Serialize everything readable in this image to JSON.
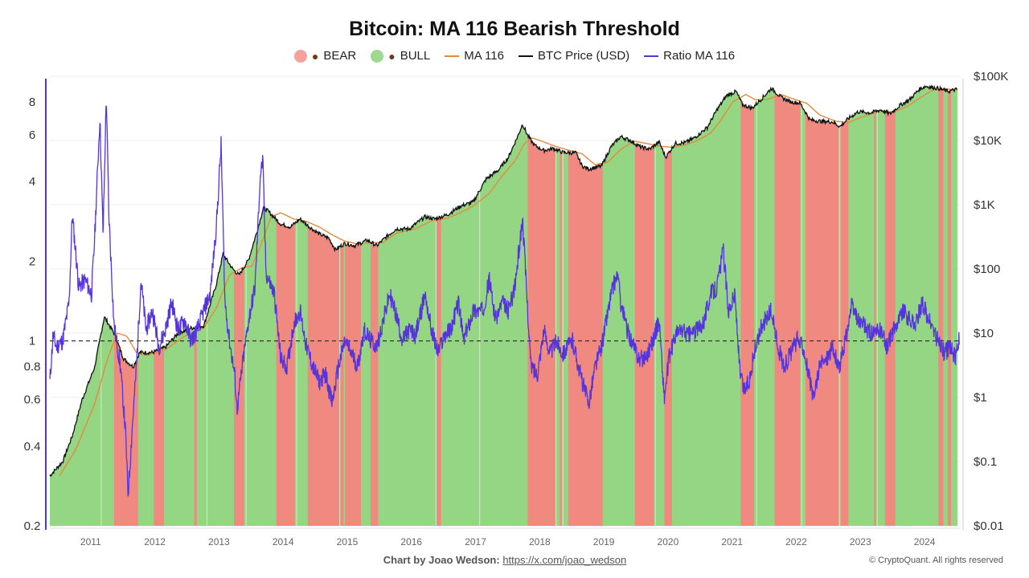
{
  "chart_data": {
    "type": "line",
    "title": "Bitcoin: MA 116 Bearish Threshold",
    "legend": [
      {
        "label": "BEAR",
        "kind": "dot",
        "color": "#f08a80",
        "icon": "bear-icon"
      },
      {
        "label": "BULL",
        "kind": "dot",
        "color": "#8fd47e",
        "icon": "bull-icon"
      },
      {
        "label": "MA 116",
        "kind": "line",
        "color": "#e58a3c"
      },
      {
        "label": "BTC Price (USD)",
        "kind": "line",
        "color": "#111111"
      },
      {
        "label": "Ratio MA 116",
        "kind": "line",
        "color": "#5533dd"
      }
    ],
    "legend_position": "top-center",
    "x_range": [
      2010.6,
      2024.8
    ],
    "x_ticks": [
      "2011",
      "2012",
      "2013",
      "2014",
      "2015",
      "2016",
      "2017",
      "2018",
      "2019",
      "2020",
      "2021",
      "2022",
      "2023",
      "2024"
    ],
    "left_axis": {
      "scale": "log",
      "range": [
        0.2,
        10
      ],
      "ticks": [
        {
          "value": 8,
          "label": "8"
        },
        {
          "value": 6,
          "label": "6"
        },
        {
          "value": 4,
          "label": "4"
        },
        {
          "value": 2,
          "label": "2"
        },
        {
          "value": 1,
          "label": "1"
        },
        {
          "value": 0.8,
          "label": "0.8"
        },
        {
          "value": 0.6,
          "label": "0.6"
        },
        {
          "value": 0.4,
          "label": "0.4"
        },
        {
          "value": 0.2,
          "label": "0.2"
        }
      ]
    },
    "right_axis": {
      "scale": "log",
      "range": [
        0.01,
        100000
      ],
      "ticks": [
        {
          "value": 100000,
          "label": "$100K"
        },
        {
          "value": 10000,
          "label": "$10K"
        },
        {
          "value": 1000,
          "label": "$1K"
        },
        {
          "value": 100,
          "label": "$100"
        },
        {
          "value": 10,
          "label": "$10"
        },
        {
          "value": 1,
          "label": "$1"
        },
        {
          "value": 0.1,
          "label": "$0.1"
        },
        {
          "value": 0.01,
          "label": "$0.01"
        }
      ]
    },
    "threshold": 1,
    "bear_periods": [
      [
        2011.6,
        2011.98
      ],
      [
        2012.22,
        2012.38
      ],
      [
        2012.85,
        2012.89
      ],
      [
        2013.47,
        2013.63
      ],
      [
        2014.13,
        2014.42
      ],
      [
        2014.62,
        2015.18
      ],
      [
        2015.2,
        2015.45
      ],
      [
        2015.6,
        2015.72
      ],
      [
        2016.63,
        2016.7
      ],
      [
        2018.05,
        2018.48
      ],
      [
        2018.55,
        2018.58
      ],
      [
        2018.68,
        2019.22
      ],
      [
        2019.72,
        2020.02
      ],
      [
        2020.18,
        2020.3
      ],
      [
        2021.37,
        2021.58
      ],
      [
        2021.9,
        2022.3
      ],
      [
        2022.38,
        2022.9
      ],
      [
        2022.93,
        2023.05
      ],
      [
        2023.45,
        2023.48
      ],
      [
        2023.62,
        2023.78
      ],
      [
        2024.45,
        2024.53
      ],
      [
        2024.6,
        2024.65
      ]
    ],
    "btc_price": [
      [
        2010.6,
        0.06
      ],
      [
        2010.8,
        0.1
      ],
      [
        2010.95,
        0.25
      ],
      [
        2011.1,
        0.9
      ],
      [
        2011.3,
        3
      ],
      [
        2011.45,
        18
      ],
      [
        2011.6,
        10
      ],
      [
        2011.75,
        4
      ],
      [
        2011.9,
        3
      ],
      [
        2012.0,
        5
      ],
      [
        2012.2,
        5
      ],
      [
        2012.4,
        6
      ],
      [
        2012.6,
        10
      ],
      [
        2012.8,
        12
      ],
      [
        2013.0,
        13
      ],
      [
        2013.2,
        60
      ],
      [
        2013.3,
        170
      ],
      [
        2013.45,
        100
      ],
      [
        2013.55,
        80
      ],
      [
        2013.7,
        140
      ],
      [
        2013.85,
        450
      ],
      [
        2013.93,
        900
      ],
      [
        2014.0,
        800
      ],
      [
        2014.2,
        500
      ],
      [
        2014.35,
        450
      ],
      [
        2014.5,
        600
      ],
      [
        2014.65,
        450
      ],
      [
        2014.8,
        350
      ],
      [
        2014.95,
        300
      ],
      [
        2015.05,
        200
      ],
      [
        2015.2,
        250
      ],
      [
        2015.35,
        230
      ],
      [
        2015.55,
        280
      ],
      [
        2015.7,
        230
      ],
      [
        2015.85,
        320
      ],
      [
        2016.0,
        420
      ],
      [
        2016.2,
        420
      ],
      [
        2016.45,
        650
      ],
      [
        2016.6,
        600
      ],
      [
        2016.8,
        700
      ],
      [
        2017.0,
        950
      ],
      [
        2017.2,
        1100
      ],
      [
        2017.4,
        2500
      ],
      [
        2017.6,
        3500
      ],
      [
        2017.75,
        5500
      ],
      [
        2017.9,
        12000
      ],
      [
        2017.97,
        18000
      ],
      [
        2018.05,
        12000
      ],
      [
        2018.15,
        8500
      ],
      [
        2018.3,
        7000
      ],
      [
        2018.45,
        7500
      ],
      [
        2018.6,
        6500
      ],
      [
        2018.8,
        6400
      ],
      [
        2018.9,
        4000
      ],
      [
        2019.0,
        3600
      ],
      [
        2019.2,
        4000
      ],
      [
        2019.35,
        8000
      ],
      [
        2019.5,
        11500
      ],
      [
        2019.65,
        10000
      ],
      [
        2019.8,
        8000
      ],
      [
        2019.95,
        7300
      ],
      [
        2020.1,
        9500
      ],
      [
        2020.2,
        5500
      ],
      [
        2020.35,
        9000
      ],
      [
        2020.5,
        9200
      ],
      [
        2020.65,
        11000
      ],
      [
        2020.85,
        16000
      ],
      [
        2021.0,
        30000
      ],
      [
        2021.15,
        50000
      ],
      [
        2021.3,
        58000
      ],
      [
        2021.4,
        36000
      ],
      [
        2021.55,
        32000
      ],
      [
        2021.7,
        45000
      ],
      [
        2021.85,
        65000
      ],
      [
        2022.0,
        47000
      ],
      [
        2022.15,
        40000
      ],
      [
        2022.3,
        38000
      ],
      [
        2022.45,
        21000
      ],
      [
        2022.6,
        20000
      ],
      [
        2022.8,
        19500
      ],
      [
        2022.92,
        16500
      ],
      [
        2023.05,
        22000
      ],
      [
        2023.2,
        28000
      ],
      [
        2023.4,
        27000
      ],
      [
        2023.55,
        30000
      ],
      [
        2023.7,
        26000
      ],
      [
        2023.85,
        35000
      ],
      [
        2024.0,
        43000
      ],
      [
        2024.15,
        62000
      ],
      [
        2024.25,
        70000
      ],
      [
        2024.45,
        65000
      ],
      [
        2024.6,
        58000
      ],
      [
        2024.75,
        63000
      ]
    ],
    "ma_116": [
      [
        2010.75,
        0.06
      ],
      [
        2011.0,
        0.15
      ],
      [
        2011.3,
        0.8
      ],
      [
        2011.5,
        4
      ],
      [
        2011.65,
        10
      ],
      [
        2011.8,
        9
      ],
      [
        2011.95,
        5
      ],
      [
        2012.1,
        4.5
      ],
      [
        2012.4,
        5.5
      ],
      [
        2012.7,
        9
      ],
      [
        2013.0,
        12
      ],
      [
        2013.2,
        25
      ],
      [
        2013.4,
        80
      ],
      [
        2013.6,
        105
      ],
      [
        2013.75,
        110
      ],
      [
        2013.9,
        250
      ],
      [
        2014.05,
        650
      ],
      [
        2014.2,
        750
      ],
      [
        2014.4,
        600
      ],
      [
        2014.6,
        550
      ],
      [
        2014.8,
        450
      ],
      [
        2015.0,
        340
      ],
      [
        2015.2,
        270
      ],
      [
        2015.4,
        245
      ],
      [
        2015.6,
        255
      ],
      [
        2015.8,
        260
      ],
      [
        2016.0,
        360
      ],
      [
        2016.3,
        420
      ],
      [
        2016.55,
        560
      ],
      [
        2016.8,
        620
      ],
      [
        2017.0,
        750
      ],
      [
        2017.2,
        950
      ],
      [
        2017.45,
        1500
      ],
      [
        2017.65,
        2800
      ],
      [
        2017.85,
        4800
      ],
      [
        2018.0,
        9000
      ],
      [
        2018.12,
        11000
      ],
      [
        2018.3,
        9500
      ],
      [
        2018.5,
        8000
      ],
      [
        2018.7,
        7000
      ],
      [
        2018.9,
        6200
      ],
      [
        2019.1,
        4200
      ],
      [
        2019.3,
        4600
      ],
      [
        2019.5,
        7200
      ],
      [
        2019.7,
        9800
      ],
      [
        2019.9,
        9000
      ],
      [
        2020.1,
        8200
      ],
      [
        2020.3,
        7800
      ],
      [
        2020.5,
        8500
      ],
      [
        2020.7,
        10000
      ],
      [
        2020.9,
        13000
      ],
      [
        2021.05,
        20000
      ],
      [
        2021.25,
        40000
      ],
      [
        2021.45,
        52000
      ],
      [
        2021.6,
        43000
      ],
      [
        2021.8,
        44000
      ],
      [
        2022.0,
        52000
      ],
      [
        2022.2,
        44000
      ],
      [
        2022.4,
        38000
      ],
      [
        2022.6,
        25000
      ],
      [
        2022.85,
        20000
      ],
      [
        2023.05,
        19000
      ],
      [
        2023.25,
        23000
      ],
      [
        2023.5,
        28000
      ],
      [
        2023.75,
        28000
      ],
      [
        2023.95,
        33000
      ],
      [
        2024.15,
        45000
      ],
      [
        2024.35,
        60000
      ],
      [
        2024.55,
        64000
      ],
      [
        2024.75,
        61000
      ]
    ],
    "ratio_ma_116": [
      [
        2010.6,
        0.7
      ],
      [
        2010.65,
        1.05
      ],
      [
        2010.7,
        0.95
      ],
      [
        2010.8,
        1.0
      ],
      [
        2010.9,
        1.4
      ],
      [
        2010.95,
        3.0
      ],
      [
        2011.0,
        2.2
      ],
      [
        2011.05,
        1.6
      ],
      [
        2011.15,
        1.7
      ],
      [
        2011.25,
        1.5
      ],
      [
        2011.3,
        2.5
      ],
      [
        2011.38,
        7.0
      ],
      [
        2011.43,
        2.5
      ],
      [
        2011.48,
        8.5
      ],
      [
        2011.52,
        3.0
      ],
      [
        2011.6,
        1.15
      ],
      [
        2011.7,
        0.8
      ],
      [
        2011.78,
        0.45
      ],
      [
        2011.82,
        0.26
      ],
      [
        2011.88,
        0.45
      ],
      [
        2011.95,
        0.8
      ],
      [
        2012.02,
        1.7
      ],
      [
        2012.1,
        1.1
      ],
      [
        2012.2,
        1.3
      ],
      [
        2012.3,
        0.95
      ],
      [
        2012.4,
        1.1
      ],
      [
        2012.5,
        1.4
      ],
      [
        2012.6,
        1.1
      ],
      [
        2012.7,
        1.2
      ],
      [
        2012.8,
        1.0
      ],
      [
        2012.9,
        1.1
      ],
      [
        2013.0,
        1.3
      ],
      [
        2013.1,
        1.5
      ],
      [
        2013.2,
        2.8
      ],
      [
        2013.27,
        5.5
      ],
      [
        2013.33,
        1.4
      ],
      [
        2013.4,
        1.0
      ],
      [
        2013.48,
        0.75
      ],
      [
        2013.52,
        0.55
      ],
      [
        2013.6,
        0.8
      ],
      [
        2013.7,
        1.2
      ],
      [
        2013.8,
        1.6
      ],
      [
        2013.88,
        4.2
      ],
      [
        2013.92,
        4.8
      ],
      [
        2013.97,
        1.8
      ],
      [
        2014.1,
        1.5
      ],
      [
        2014.2,
        0.85
      ],
      [
        2014.3,
        0.8
      ],
      [
        2014.4,
        1.15
      ],
      [
        2014.5,
        1.3
      ],
      [
        2014.6,
        0.95
      ],
      [
        2014.7,
        0.8
      ],
      [
        2014.8,
        0.7
      ],
      [
        2014.9,
        0.75
      ],
      [
        2015.0,
        0.58
      ],
      [
        2015.1,
        0.8
      ],
      [
        2015.2,
        1.0
      ],
      [
        2015.3,
        0.9
      ],
      [
        2015.4,
        0.8
      ],
      [
        2015.5,
        1.1
      ],
      [
        2015.6,
        1.0
      ],
      [
        2015.7,
        0.95
      ],
      [
        2015.8,
        1.2
      ],
      [
        2015.9,
        1.5
      ],
      [
        2016.0,
        1.25
      ],
      [
        2016.1,
        1.0
      ],
      [
        2016.2,
        1.1
      ],
      [
        2016.3,
        1.05
      ],
      [
        2016.45,
        1.5
      ],
      [
        2016.55,
        1.1
      ],
      [
        2016.65,
        0.9
      ],
      [
        2016.75,
        1.05
      ],
      [
        2016.85,
        1.1
      ],
      [
        2016.97,
        1.4
      ],
      [
        2017.05,
        1.0
      ],
      [
        2017.2,
        1.3
      ],
      [
        2017.35,
        1.3
      ],
      [
        2017.45,
        1.7
      ],
      [
        2017.55,
        1.2
      ],
      [
        2017.65,
        1.4
      ],
      [
        2017.75,
        1.3
      ],
      [
        2017.85,
        1.6
      ],
      [
        2017.97,
        2.9
      ],
      [
        2018.05,
        1.3
      ],
      [
        2018.1,
        0.8
      ],
      [
        2018.2,
        0.75
      ],
      [
        2018.3,
        1.1
      ],
      [
        2018.4,
        0.9
      ],
      [
        2018.5,
        1.0
      ],
      [
        2018.6,
        0.9
      ],
      [
        2018.75,
        1.0
      ],
      [
        2018.9,
        0.7
      ],
      [
        2019.0,
        0.58
      ],
      [
        2019.1,
        0.8
      ],
      [
        2019.2,
        0.95
      ],
      [
        2019.35,
        1.5
      ],
      [
        2019.45,
        1.8
      ],
      [
        2019.5,
        1.4
      ],
      [
        2019.6,
        1.1
      ],
      [
        2019.7,
        0.95
      ],
      [
        2019.8,
        0.85
      ],
      [
        2019.9,
        0.88
      ],
      [
        2020.0,
        1.0
      ],
      [
        2020.1,
        1.2
      ],
      [
        2020.18,
        0.6
      ],
      [
        2020.25,
        0.85
      ],
      [
        2020.35,
        1.05
      ],
      [
        2020.45,
        1.1
      ],
      [
        2020.55,
        1.05
      ],
      [
        2020.7,
        1.1
      ],
      [
        2020.8,
        1.2
      ],
      [
        2020.9,
        1.5
      ],
      [
        2021.0,
        1.6
      ],
      [
        2021.1,
        2.2
      ],
      [
        2021.18,
        1.3
      ],
      [
        2021.28,
        1.5
      ],
      [
        2021.36,
        0.75
      ],
      [
        2021.42,
        0.65
      ],
      [
        2021.5,
        0.7
      ],
      [
        2021.58,
        0.9
      ],
      [
        2021.7,
        1.15
      ],
      [
        2021.85,
        1.3
      ],
      [
        2021.95,
        0.95
      ],
      [
        2022.05,
        0.8
      ],
      [
        2022.15,
        0.9
      ],
      [
        2022.25,
        1.0
      ],
      [
        2022.35,
        0.95
      ],
      [
        2022.45,
        0.7
      ],
      [
        2022.5,
        0.6
      ],
      [
        2022.6,
        0.8
      ],
      [
        2022.7,
        0.85
      ],
      [
        2022.8,
        0.95
      ],
      [
        2022.9,
        0.78
      ],
      [
        2023.0,
        1.0
      ],
      [
        2023.1,
        1.35
      ],
      [
        2023.2,
        1.2
      ],
      [
        2023.35,
        1.1
      ],
      [
        2023.45,
        1.05
      ],
      [
        2023.55,
        1.1
      ],
      [
        2023.65,
        0.95
      ],
      [
        2023.75,
        1.1
      ],
      [
        2023.9,
        1.3
      ],
      [
        2024.0,
        1.2
      ],
      [
        2024.1,
        1.15
      ],
      [
        2024.2,
        1.4
      ],
      [
        2024.3,
        1.2
      ],
      [
        2024.45,
        1.0
      ],
      [
        2024.55,
        0.9
      ],
      [
        2024.65,
        0.95
      ],
      [
        2024.72,
        0.85
      ],
      [
        2024.78,
        1.05
      ]
    ]
  },
  "credit": {
    "label": "Chart by Joao Wedson:",
    "link": "https://x.com/joao_wedson"
  },
  "copyright": "© CryptoQuant. All rights reserved"
}
